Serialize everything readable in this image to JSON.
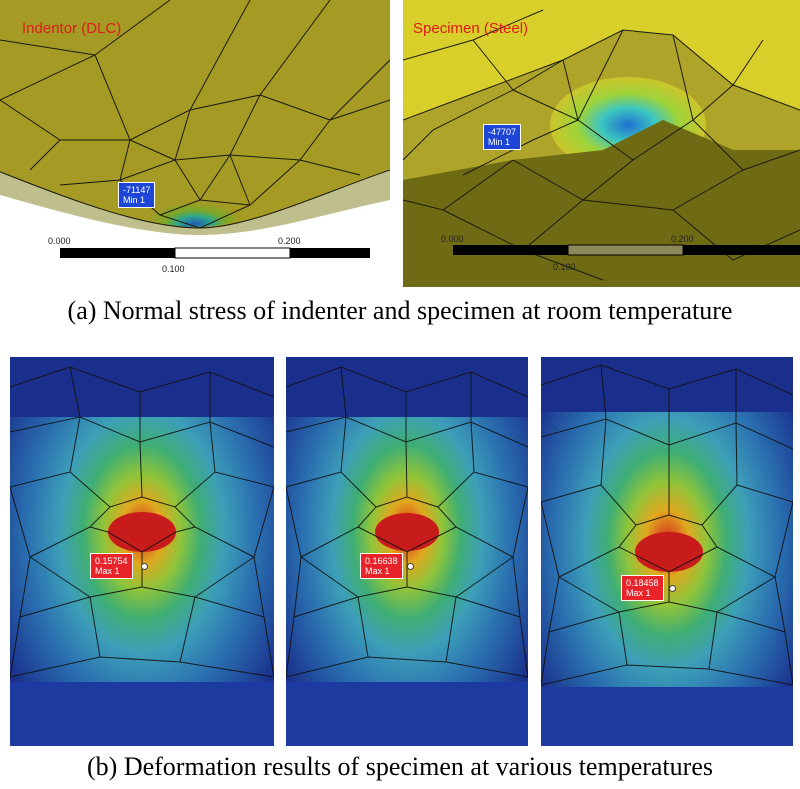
{
  "figure": {
    "panel_a": {
      "caption": "(a) Normal stress of indenter and specimen at room temperature",
      "indentor": {
        "title": "Indentor (DLC)",
        "probe_value": "-71147",
        "probe_label": "Min 1",
        "scale": [
          "0.000",
          "0.100",
          "0.200"
        ]
      },
      "specimen": {
        "title": "Specimen (Steel)",
        "probe_value": "-47707",
        "probe_label": "Min 1",
        "scale": [
          "0.000",
          "0.100",
          "0.200"
        ]
      }
    },
    "panel_b": {
      "caption": "(b) Deformation results of specimen at various temperatures",
      "images": [
        {
          "probe_value": "0.15754",
          "probe_label": "Max 1"
        },
        {
          "probe_value": "0.16638",
          "probe_label": "Max 1"
        },
        {
          "probe_value": "0.18458",
          "probe_label": "Max 1"
        }
      ]
    }
  },
  "colors": {
    "olive": "#a59a24",
    "dark_olive": "#7a7418",
    "yellow": "#d9cf2a",
    "navy": "#1a2f8c",
    "red": "#d41e1e"
  }
}
